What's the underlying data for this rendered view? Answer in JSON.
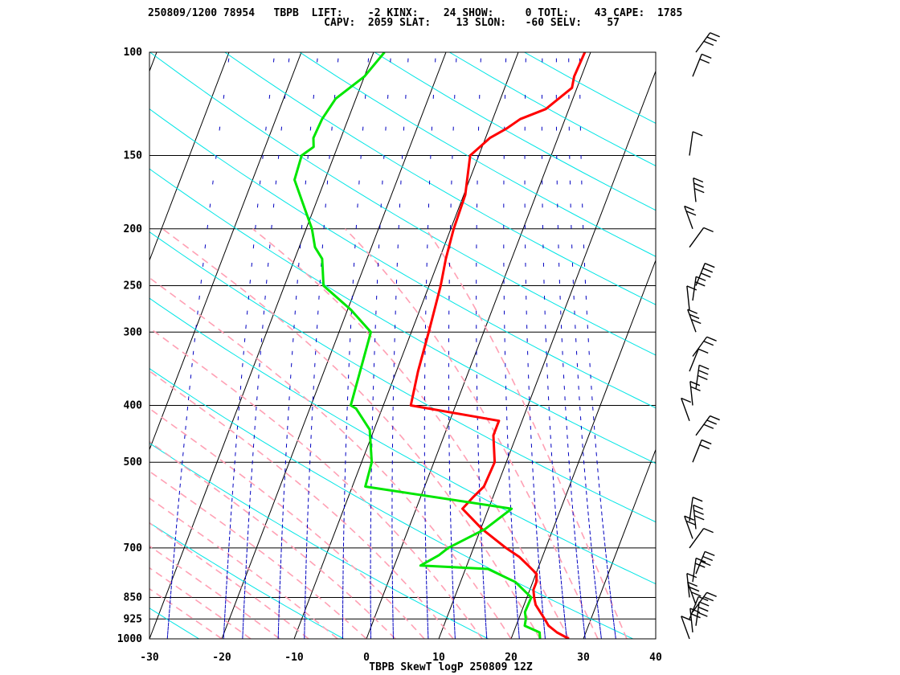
{
  "header": {
    "line1": "250809/1200 78954   TBPB  LIFT:    -2 KINX:    24 SHOW:     0 TOTL:    43 CAPE:  1785",
    "line2": "                            CAPV:  2059 SLAT:    13 SLON:   -60 SELV:    57"
  },
  "chart_data": {
    "type": "line",
    "title": "TBPB SkewT logP 250809 12Z",
    "station": "TBPB",
    "station_number": "78954",
    "date": "250809/1200",
    "indices": {
      "LIFT": -2,
      "KINX": 24,
      "SHOW": 0,
      "TOTL": 43,
      "CAPE": 1785,
      "CAPV": 2059,
      "SLAT": 13,
      "SLON": -60,
      "SELV": 57
    },
    "xlabel": "",
    "ylabel": "",
    "y_scale": "log-pressure",
    "x_ticks": [
      -30,
      -20,
      -10,
      0,
      10,
      20,
      30,
      40
    ],
    "y_ticks": [
      100,
      150,
      200,
      250,
      300,
      400,
      500,
      700,
      850,
      925,
      1000
    ],
    "xlim": [
      -30,
      40
    ],
    "ylim": [
      1000,
      100
    ],
    "skew_deg_per_decade": 31,
    "colors": {
      "temperature": "#ff0000",
      "dewpoint": "#00e600",
      "isotherm": "#000000",
      "dry_adiabat": "#00e5e5",
      "moist_adiabat": "#ffa0b4",
      "mixing_ratio": "#0000c0",
      "wind_barb": "#000000"
    },
    "series": [
      {
        "name": "temperature",
        "p": [
          1000,
          975,
          950,
          925,
          900,
          875,
          850,
          825,
          800,
          775,
          750,
          725,
          700,
          650,
          600,
          575,
          550,
          500,
          450,
          425,
          400,
          350,
          300,
          250,
          225,
          200,
          175,
          150,
          145,
          140,
          135,
          130,
          125,
          115,
          110,
          100
        ],
        "t": [
          28,
          26,
          24.5,
          23.6,
          22.6,
          21.6,
          21,
          20.5,
          20.5,
          20.1,
          18.5,
          16.8,
          14.5,
          10.2,
          6.4,
          7.2,
          8.2,
          8.4,
          6.8,
          6.8,
          -6.2,
          -7.0,
          -7.6,
          -8.4,
          -9.1,
          -9.6,
          -9.8,
          -11.2,
          -10.3,
          -9.4,
          -7.6,
          -6.2,
          -3.2,
          -0.7,
          -1.0,
          -0.8
        ],
        "values": [
          28,
          26,
          24.5,
          23.6,
          22.6,
          21.6,
          21,
          20.5,
          20.5,
          20.1,
          18.5,
          16.8,
          14.5,
          10.2,
          6.4,
          7.2,
          8.2,
          8.4,
          6.8,
          6.8,
          -6.2,
          -7.0,
          -7.6,
          -8.4,
          -9.1,
          -9.6,
          -9.8,
          -11.2,
          -10.3,
          -9.4,
          -7.6,
          -6.2,
          -3.2,
          -0.7,
          -1.0,
          -0.8
        ]
      },
      {
        "name": "dewpoint",
        "p": [
          1000,
          975,
          950,
          925,
          900,
          850,
          800,
          760,
          750,
          720,
          700,
          650,
          600,
          550,
          500,
          440,
          405,
          400,
          300,
          275,
          250,
          225,
          215,
          200,
          165,
          150,
          145,
          140,
          135,
          130,
          120,
          110,
          100
        ],
        "t": [
          24,
          23.6,
          21.2,
          21,
          20.5,
          20.6,
          17.6,
          13.1,
          3.6,
          5.6,
          6.5,
          10.6,
          13.2,
          -8.2,
          -8.6,
          -10.6,
          -13.6,
          -14.5,
          -15.6,
          -19.5,
          -24.6,
          -26.2,
          -27.8,
          -29.2,
          -34.2,
          -34.5,
          -33.3,
          -33.8,
          -33.7,
          -33.6,
          -32.8,
          -30.0,
          -28.5
        ],
        "values": [
          24,
          23.6,
          21.2,
          21,
          20.5,
          20.6,
          17.6,
          13.1,
          3.6,
          5.6,
          6.5,
          10.6,
          13.2,
          -8.2,
          -8.6,
          -10.6,
          -13.6,
          -14.5,
          -15.6,
          -19.5,
          -24.6,
          -26.2,
          -27.8,
          -29.2,
          -34.2,
          -34.5,
          -33.3,
          -33.8,
          -33.7,
          -33.6,
          -32.8,
          -30.0,
          -28.5
        ]
      }
    ],
    "wind_levels_hpa": [
      1000,
      975,
      950,
      925,
      900,
      875,
      850,
      800,
      775,
      700,
      675,
      650,
      630,
      500,
      450,
      425,
      400,
      375,
      350,
      330,
      300,
      275,
      265,
      250,
      215,
      200,
      180,
      150,
      110,
      100
    ]
  }
}
